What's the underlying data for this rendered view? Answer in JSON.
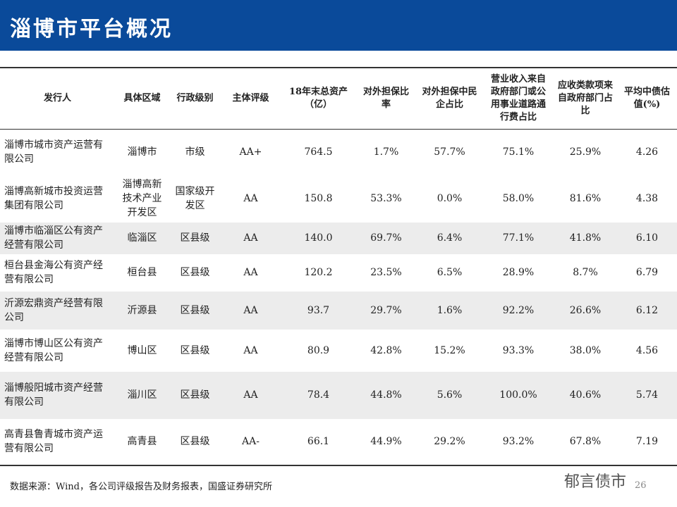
{
  "header": {
    "title": "淄博市平台概况"
  },
  "table": {
    "columns": [
      "发行人",
      "具体区域",
      "行政级别",
      "主体评级",
      "18年末总资产（亿）",
      "对外担保比率",
      "对外担保中民企占比",
      "营业收入来自政府部门或公用事业道路通行费占比",
      "应收类款项来自政府部门占比",
      "平均中债估值(%)"
    ],
    "rows": [
      [
        "淄博市城市资产运营有限公司",
        "淄博市",
        "市级",
        "AA+",
        "764.5",
        "1.7%",
        "57.7%",
        "75.1%",
        "25.9%",
        "4.26"
      ],
      [
        "淄博高新城市投资运营集团有限公司",
        "淄博高新技术产业开发区",
        "国家级开发区",
        "AA",
        "150.8",
        "53.3%",
        "0.0%",
        "58.0%",
        "81.6%",
        "4.38"
      ],
      [
        "淄博市临淄区公有资产经营有限公司",
        "临淄区",
        "区县级",
        "AA",
        "140.0",
        "69.7%",
        "6.4%",
        "77.1%",
        "41.8%",
        "6.10"
      ],
      [
        "桓台县金海公有资产经营有限公司",
        "桓台县",
        "区县级",
        "AA",
        "120.2",
        "23.5%",
        "6.5%",
        "28.9%",
        "8.7%",
        "6.79"
      ],
      [
        "沂源宏鼎资产经营有限公司",
        "沂源县",
        "区县级",
        "AA",
        "93.7",
        "29.7%",
        "1.6%",
        "92.2%",
        "26.6%",
        "6.12"
      ],
      [
        "淄博市博山区公有资产经营有限公司",
        "博山区",
        "区县级",
        "AA",
        "80.9",
        "42.8%",
        "15.2%",
        "93.3%",
        "38.0%",
        "4.56"
      ],
      [
        "淄博般阳城市资产经营有限公司",
        "淄川区",
        "区县级",
        "AA",
        "78.4",
        "44.8%",
        "5.6%",
        "100.0%",
        "40.6%",
        "5.74"
      ],
      [
        "高青县鲁青城市资产运营有限公司",
        "高青县",
        "区县级",
        "AA-",
        "66.1",
        "44.9%",
        "29.2%",
        "93.2%",
        "67.8%",
        "7.19"
      ]
    ]
  },
  "footer": {
    "source": "数据来源：Wind，各公司评级报告及财务报表，国盛证券研究所",
    "watermark": "郁言债市",
    "page": "26"
  }
}
